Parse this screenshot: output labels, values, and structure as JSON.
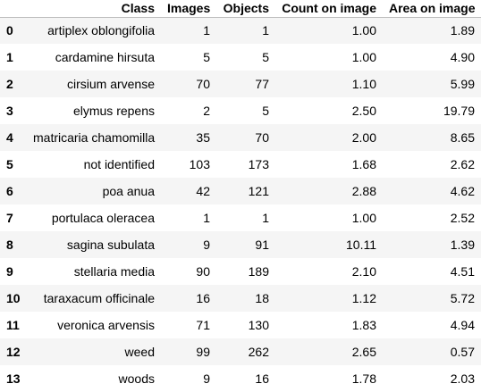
{
  "table": {
    "columns": [
      "",
      "Class",
      "Images",
      "Objects",
      "Count on image",
      "Area on image"
    ],
    "rows": [
      {
        "index": "0",
        "class": "artiplex oblongifolia",
        "images": "1",
        "objects": "1",
        "count": "1.00",
        "area": "1.89"
      },
      {
        "index": "1",
        "class": "cardamine hirsuta",
        "images": "5",
        "objects": "5",
        "count": "1.00",
        "area": "4.90"
      },
      {
        "index": "2",
        "class": "cirsium arvense",
        "images": "70",
        "objects": "77",
        "count": "1.10",
        "area": "5.99"
      },
      {
        "index": "3",
        "class": "elymus repens",
        "images": "2",
        "objects": "5",
        "count": "2.50",
        "area": "19.79"
      },
      {
        "index": "4",
        "class": "matricaria chamomilla",
        "images": "35",
        "objects": "70",
        "count": "2.00",
        "area": "8.65"
      },
      {
        "index": "5",
        "class": "not identified",
        "images": "103",
        "objects": "173",
        "count": "1.68",
        "area": "2.62"
      },
      {
        "index": "6",
        "class": "poa anua",
        "images": "42",
        "objects": "121",
        "count": "2.88",
        "area": "4.62"
      },
      {
        "index": "7",
        "class": "portulaca oleracea",
        "images": "1",
        "objects": "1",
        "count": "1.00",
        "area": "2.52"
      },
      {
        "index": "8",
        "class": "sagina subulata",
        "images": "9",
        "objects": "91",
        "count": "10.11",
        "area": "1.39"
      },
      {
        "index": "9",
        "class": "stellaria media",
        "images": "90",
        "objects": "189",
        "count": "2.10",
        "area": "4.51"
      },
      {
        "index": "10",
        "class": "taraxacum officinale",
        "images": "16",
        "objects": "18",
        "count": "1.12",
        "area": "5.72"
      },
      {
        "index": "11",
        "class": "veronica arvensis",
        "images": "71",
        "objects": "130",
        "count": "1.83",
        "area": "4.94"
      },
      {
        "index": "12",
        "class": "weed",
        "images": "99",
        "objects": "262",
        "count": "2.65",
        "area": "0.57"
      },
      {
        "index": "13",
        "class": "woods",
        "images": "9",
        "objects": "16",
        "count": "1.78",
        "area": "2.03"
      }
    ]
  }
}
